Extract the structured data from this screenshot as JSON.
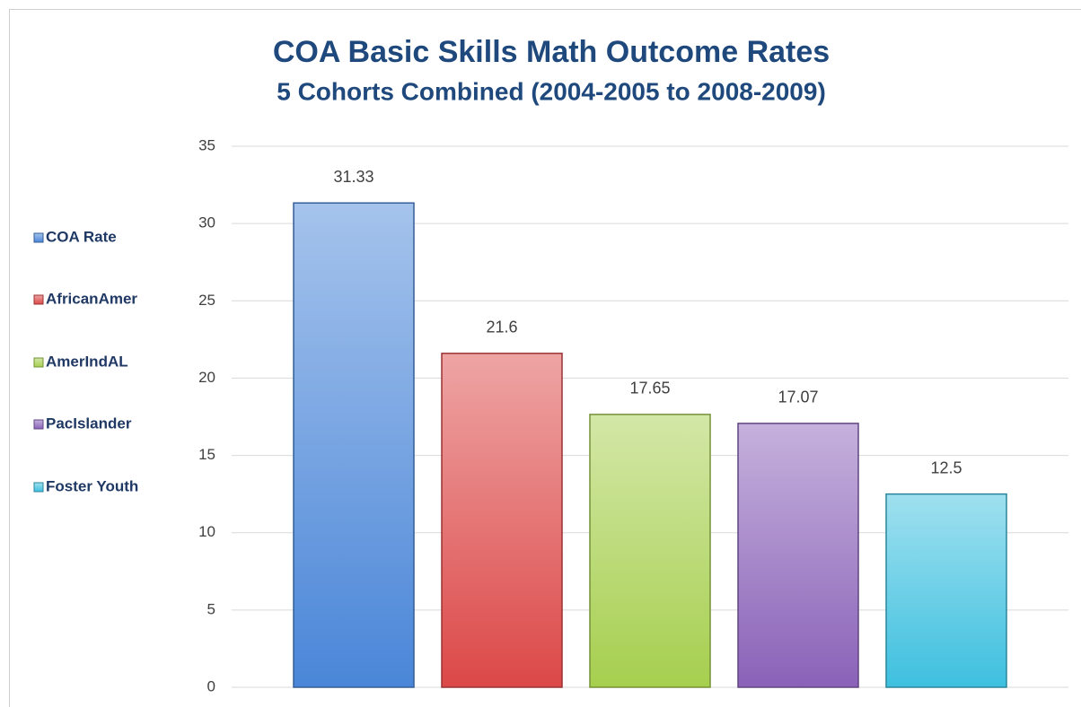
{
  "chart_data": {
    "type": "bar",
    "title": "COA Basic Skills Math Outcome Rates",
    "subtitle": "5 Cohorts Combined (2004-2005 to 2008-2009)",
    "series": [
      {
        "name": "COA Rate",
        "color": "#4a86d8",
        "values": [
          31.33
        ]
      },
      {
        "name": "AfricanAmer",
        "color": "#dc4848",
        "values": [
          21.6
        ]
      },
      {
        "name": "AmerIndAL",
        "color": "#a6cf4e",
        "values": [
          17.65
        ]
      },
      {
        "name": "PacIslander",
        "color": "#8a62b8",
        "values": [
          17.07
        ]
      },
      {
        "name": "Foster Youth",
        "color": "#3ec0df",
        "values": [
          12.5
        ]
      }
    ],
    "ylim": [
      0,
      35
    ],
    "yticks": [
      0,
      5,
      10,
      15,
      20,
      25,
      30,
      35
    ],
    "grid": true,
    "legend": "left"
  }
}
